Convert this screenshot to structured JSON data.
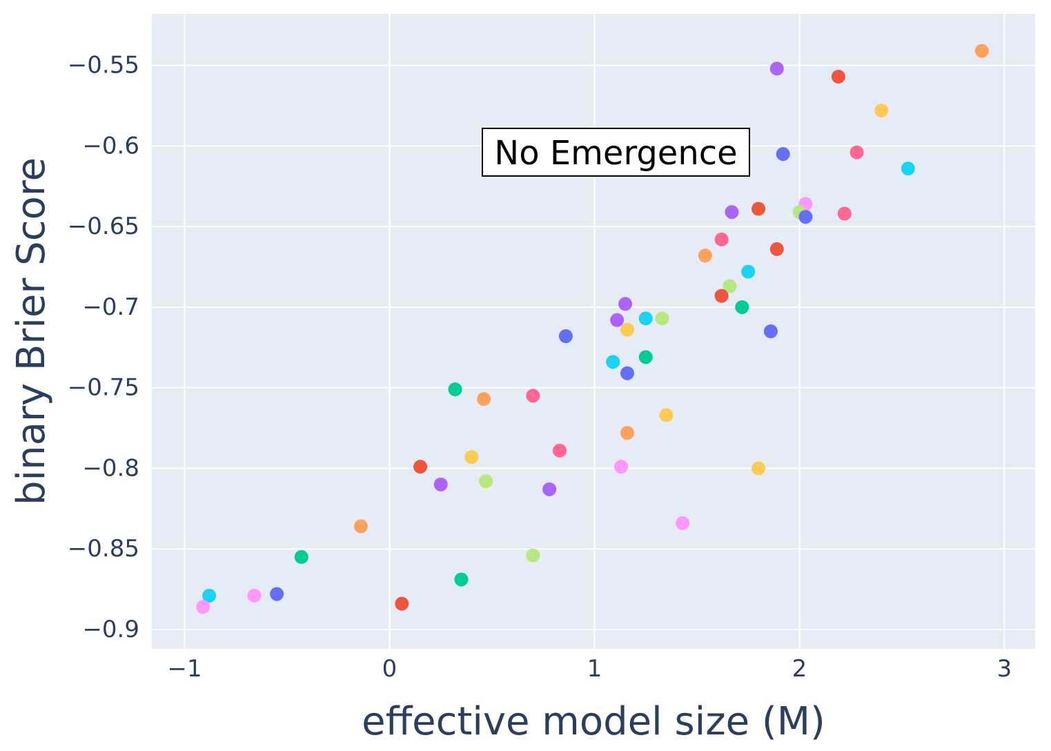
{
  "chart_data": {
    "type": "scatter",
    "title": "",
    "xlabel": "effective model size (M)",
    "ylabel": "binary Brier Score",
    "xlim": [
      -1.16,
      3.15
    ],
    "ylim": [
      -0.912,
      -0.518
    ],
    "x_ticks": [
      -1,
      0,
      1,
      2,
      3
    ],
    "x_tick_labels": [
      "−1",
      "0",
      "1",
      "2",
      "3"
    ],
    "y_ticks": [
      -0.9,
      -0.85,
      -0.8,
      -0.75,
      -0.7,
      -0.65,
      -0.6,
      -0.55
    ],
    "y_tick_labels": [
      "−0.9",
      "−0.85",
      "−0.8",
      "−0.75",
      "−0.7",
      "−0.65",
      "−0.6",
      "−0.55"
    ],
    "grid": true,
    "legend": "none",
    "background_color": "#e5ecf6",
    "annotation": {
      "text": "No Emergence",
      "x": 1.1,
      "y": -0.6
    },
    "points": [
      {
        "x": 2.89,
        "y": -0.541,
        "color": "#ffa15a"
      },
      {
        "x": 1.89,
        "y": -0.552,
        "color": "#ab63fa"
      },
      {
        "x": 2.19,
        "y": -0.557,
        "color": "#ef553b"
      },
      {
        "x": 2.4,
        "y": -0.578,
        "color": "#fecb52"
      },
      {
        "x": 1.92,
        "y": -0.605,
        "color": "#636efa"
      },
      {
        "x": 2.28,
        "y": -0.604,
        "color": "#ff6692"
      },
      {
        "x": 2.53,
        "y": -0.614,
        "color": "#19d3f3"
      },
      {
        "x": 2.03,
        "y": -0.636,
        "color": "#ff97ff"
      },
      {
        "x": 1.67,
        "y": -0.641,
        "color": "#ab63fa"
      },
      {
        "x": 1.8,
        "y": -0.639,
        "color": "#ef553b"
      },
      {
        "x": 2.0,
        "y": -0.641,
        "color": "#b6e880"
      },
      {
        "x": 2.03,
        "y": -0.644,
        "color": "#636efa"
      },
      {
        "x": 2.22,
        "y": -0.642,
        "color": "#ff6692"
      },
      {
        "x": 1.62,
        "y": -0.658,
        "color": "#ff6692"
      },
      {
        "x": 1.89,
        "y": -0.664,
        "color": "#ef553b"
      },
      {
        "x": 1.54,
        "y": -0.668,
        "color": "#ffa15a"
      },
      {
        "x": 1.75,
        "y": -0.678,
        "color": "#19d3f3"
      },
      {
        "x": 1.66,
        "y": -0.687,
        "color": "#b6e880"
      },
      {
        "x": 1.62,
        "y": -0.693,
        "color": "#ef553b"
      },
      {
        "x": 1.72,
        "y": -0.7,
        "color": "#00cc96"
      },
      {
        "x": 1.15,
        "y": -0.698,
        "color": "#ab63fa"
      },
      {
        "x": 1.11,
        "y": -0.708,
        "color": "#ab63fa"
      },
      {
        "x": 1.25,
        "y": -0.707,
        "color": "#19d3f3"
      },
      {
        "x": 1.33,
        "y": -0.707,
        "color": "#b6e880"
      },
      {
        "x": 1.16,
        "y": -0.714,
        "color": "#fecb52"
      },
      {
        "x": 1.86,
        "y": -0.715,
        "color": "#636efa"
      },
      {
        "x": 0.86,
        "y": -0.718,
        "color": "#636efa"
      },
      {
        "x": 1.25,
        "y": -0.731,
        "color": "#00cc96"
      },
      {
        "x": 1.09,
        "y": -0.734,
        "color": "#19d3f3"
      },
      {
        "x": 1.16,
        "y": -0.741,
        "color": "#636efa"
      },
      {
        "x": 0.32,
        "y": -0.751,
        "color": "#00cc96"
      },
      {
        "x": 0.46,
        "y": -0.757,
        "color": "#ffa15a"
      },
      {
        "x": 0.7,
        "y": -0.755,
        "color": "#ff6692"
      },
      {
        "x": 1.35,
        "y": -0.767,
        "color": "#fecb52"
      },
      {
        "x": 1.16,
        "y": -0.778,
        "color": "#ffa15a"
      },
      {
        "x": 0.83,
        "y": -0.789,
        "color": "#ff6692"
      },
      {
        "x": 0.4,
        "y": -0.793,
        "color": "#fecb52"
      },
      {
        "x": 0.15,
        "y": -0.799,
        "color": "#ef553b"
      },
      {
        "x": 1.13,
        "y": -0.799,
        "color": "#ff97ff"
      },
      {
        "x": 1.8,
        "y": -0.8,
        "color": "#fecb52"
      },
      {
        "x": 0.47,
        "y": -0.808,
        "color": "#b6e880"
      },
      {
        "x": 0.25,
        "y": -0.81,
        "color": "#ab63fa"
      },
      {
        "x": 0.78,
        "y": -0.813,
        "color": "#ab63fa"
      },
      {
        "x": 1.43,
        "y": -0.834,
        "color": "#ff97ff"
      },
      {
        "x": -0.14,
        "y": -0.836,
        "color": "#ffa15a"
      },
      {
        "x": -0.43,
        "y": -0.855,
        "color": "#00cc96"
      },
      {
        "x": 0.7,
        "y": -0.854,
        "color": "#b6e880"
      },
      {
        "x": 0.35,
        "y": -0.869,
        "color": "#00cc96"
      },
      {
        "x": -0.88,
        "y": -0.879,
        "color": "#19d3f3"
      },
      {
        "x": -0.66,
        "y": -0.879,
        "color": "#ff97ff"
      },
      {
        "x": -0.55,
        "y": -0.878,
        "color": "#636efa"
      },
      {
        "x": 0.06,
        "y": -0.884,
        "color": "#ef553b"
      },
      {
        "x": -0.91,
        "y": -0.886,
        "color": "#ff97ff"
      }
    ]
  }
}
